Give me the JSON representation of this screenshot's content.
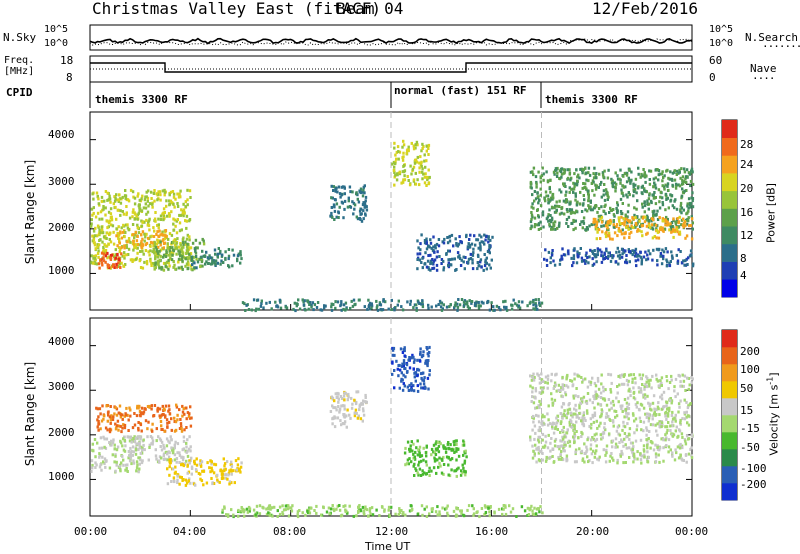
{
  "header": {
    "title": "Christmas Valley East (fitACF)",
    "beam": "Beam 04",
    "date": "12/Feb/2016"
  },
  "top_panels": {
    "nsky_label": "N.Sky",
    "nsearch_label": "N.Search",
    "nsky_ticks": [
      "10^5",
      "10^0"
    ],
    "nsearch_ticks": [
      "10^5",
      "10^0"
    ],
    "freq_label_line1": "Freq.",
    "freq_label_line2": "[MHz]",
    "freq_ticks": [
      "18",
      "8"
    ],
    "nave_label": "Nave",
    "nave_ticks": [
      "60",
      "0"
    ],
    "cpid_label": "CPID",
    "cpid_segments": [
      {
        "label": "themis 3300 RF",
        "start_hour": 0
      },
      {
        "label": "normal (fast) 151 RF",
        "start_hour": 12
      },
      {
        "label": "themis 3300 RF",
        "start_hour": 18
      }
    ]
  },
  "chart_data": [
    {
      "type": "heatmap",
      "parameter": "power",
      "ylabel": "Slant Range [km]",
      "yticks": [
        "1000",
        "2000",
        "3000",
        "4000"
      ],
      "ylim_km": [
        180,
        4620
      ],
      "xlim_hours": [
        0,
        24
      ],
      "colorbar": {
        "label": "Power [dB]",
        "ticks": [
          "28",
          "24",
          "20",
          "16",
          "12",
          "8",
          "4"
        ],
        "range": [
          0,
          30
        ],
        "colors": [
          "#0000e8",
          "#1f3fb4",
          "#2c6e8a",
          "#3f8a62",
          "#5da04a",
          "#98c43a",
          "#d8d420",
          "#f5a21e",
          "#f06a1c",
          "#e02a1a"
        ]
      },
      "echo_regions": [
        {
          "t": [
            0.0,
            4.0
          ],
          "r": [
            1150,
            2900
          ],
          "level": 18
        },
        {
          "t": [
            0.3,
            1.2
          ],
          "r": [
            1150,
            1500
          ],
          "level": 26
        },
        {
          "t": [
            1.0,
            3.0
          ],
          "r": [
            1600,
            2000
          ],
          "level": 22
        },
        {
          "t": [
            2.5,
            4.5
          ],
          "r": [
            1100,
            1800
          ],
          "level": 14
        },
        {
          "t": [
            4.0,
            6.0
          ],
          "r": [
            1150,
            1600
          ],
          "level": 10
        },
        {
          "t": [
            9.5,
            11.0
          ],
          "r": [
            2200,
            3000
          ],
          "level": 8
        },
        {
          "t": [
            12.0,
            13.5
          ],
          "r": [
            3000,
            4000
          ],
          "level": 18
        },
        {
          "t": [
            13.0,
            16.0
          ],
          "r": [
            1100,
            1900
          ],
          "level": 7
        },
        {
          "t": [
            17.5,
            24.0
          ],
          "r": [
            2000,
            3400
          ],
          "level": 12
        },
        {
          "t": [
            20.0,
            24.0
          ],
          "r": [
            1800,
            2300
          ],
          "level": 22
        },
        {
          "t": [
            18.0,
            24.0
          ],
          "r": [
            1200,
            1600
          ],
          "level": 6
        },
        {
          "t": [
            6.0,
            18.0
          ],
          "r": [
            200,
            450
          ],
          "level": 9
        }
      ]
    },
    {
      "type": "heatmap",
      "parameter": "velocity",
      "ylabel": "Slant Range [km]",
      "yticks": [
        "1000",
        "2000",
        "3000",
        "4000"
      ],
      "ylim_km": [
        180,
        4620
      ],
      "xlim_hours": [
        0,
        24
      ],
      "xticks": [
        "00:00",
        "04:00",
        "08:00",
        "12:00",
        "16:00",
        "20:00",
        "00:00"
      ],
      "xlabel": "Time UT",
      "colorbar": {
        "label_main": "Velocity [m s",
        "label_sup": "-1",
        "label_end": "]",
        "ticks": [
          "200",
          "100",
          "50",
          "15",
          "-15",
          "-50",
          "-100",
          "-200"
        ],
        "range": [
          -250,
          250
        ],
        "colors": [
          "#0f2fd0",
          "#2a5fb5",
          "#2a8a4a",
          "#48b82e",
          "#a4d870",
          "#c8c8c8",
          "#f0c800",
          "#f09a1c",
          "#e8641a",
          "#e02a1a"
        ]
      },
      "echo_regions": [
        {
          "t": [
            0.2,
            4.0
          ],
          "r": [
            2100,
            2700
          ],
          "level": 160
        },
        {
          "t": [
            0.0,
            2.0
          ],
          "r": [
            1200,
            2000
          ],
          "level": 0
        },
        {
          "t": [
            1.5,
            4.0
          ],
          "r": [
            1400,
            2000
          ],
          "level": 20
        },
        {
          "t": [
            3.0,
            6.0
          ],
          "r": [
            900,
            1500
          ],
          "level": 60
        },
        {
          "t": [
            9.5,
            11.0
          ],
          "r": [
            2200,
            3000
          ],
          "level": 30
        },
        {
          "t": [
            12.0,
            13.5
          ],
          "r": [
            3000,
            4000
          ],
          "level": -180
        },
        {
          "t": [
            12.5,
            15.0
          ],
          "r": [
            1100,
            1900
          ],
          "level": -70
        },
        {
          "t": [
            17.5,
            24.0
          ],
          "r": [
            1400,
            3400
          ],
          "level": 0
        },
        {
          "t": [
            5.0,
            18.0
          ],
          "r": [
            200,
            450
          ],
          "level": -30
        }
      ]
    }
  ]
}
